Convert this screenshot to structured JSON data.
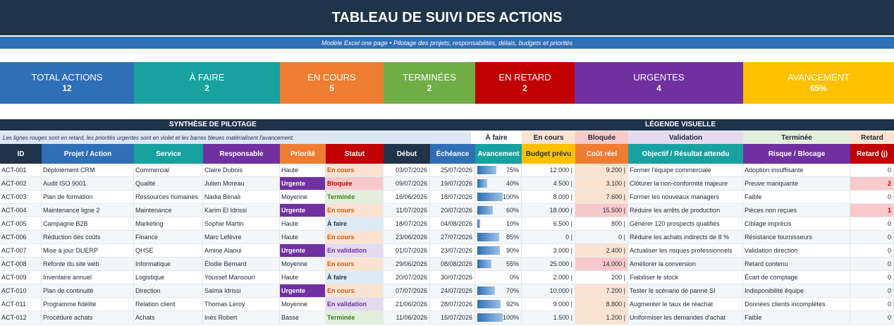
{
  "title": "TABLEAU DE SUIVI DES ACTIONS",
  "subtitle": "Modèle Excel one page • Pilotage des projets, responsabilités, délais, budgets et priorités",
  "kpis": [
    {
      "label": "TOTAL ACTIONS",
      "value": "12",
      "color": "#2f6fb6"
    },
    {
      "label": "À FAIRE",
      "value": "2",
      "color": "#17a2a0"
    },
    {
      "label": "EN COURS",
      "value": "5",
      "color": "#ee7d31"
    },
    {
      "label": "TERMINÉES",
      "value": "2",
      "color": "#70ad47"
    },
    {
      "label": "EN RETARD",
      "value": "2",
      "color": "#c00000"
    },
    {
      "label": "URGENTES",
      "value": "4",
      "color": "#7030a0"
    },
    {
      "label": "AVANCEMENT",
      "value": "65%",
      "color": "#ffc000"
    }
  ],
  "section": {
    "synthese": "SYNTHÈSE DE PILOTAGE",
    "legende": "LÉGENDE VISUELLE"
  },
  "info_note": "Les lignes rouges sont en retard, les priorités urgentes sont en violet et les barres bleues matérialisent l'avancement.",
  "legend": [
    {
      "label": "À faire",
      "bg": "#ffffff"
    },
    {
      "label": "En cours",
      "bg": "#fbe3d2"
    },
    {
      "label": "Bloquée",
      "bg": "#f8c9c9"
    },
    {
      "label": "Validation",
      "bg": "#e5daf0"
    },
    {
      "label": "Terminée",
      "bg": "#e2efda"
    },
    {
      "label": "Retard",
      "bg": "#fbe3d2"
    }
  ],
  "columns": [
    {
      "label": "ID",
      "color": "#1f3349"
    },
    {
      "label": "Projet / Action",
      "color": "#2f6fb6"
    },
    {
      "label": "Service",
      "color": "#17a2a0"
    },
    {
      "label": "Responsable",
      "color": "#7030a0"
    },
    {
      "label": "Priorité",
      "color": "#ee7d31"
    },
    {
      "label": "Statut",
      "color": "#c00000"
    },
    {
      "label": "Début",
      "color": "#1f3349"
    },
    {
      "label": "Échéance",
      "color": "#2f6fb6"
    },
    {
      "label": "Avancement",
      "color": "#17a2a0"
    },
    {
      "label": "Budget prévu",
      "color": "#ffc000"
    },
    {
      "label": "Coût réel",
      "color": "#ee7d31"
    },
    {
      "label": "Objectif / Résultat attendu",
      "color": "#17a2a0"
    },
    {
      "label": "Risque / Blocage",
      "color": "#7030a0"
    },
    {
      "label": "Retard (j)",
      "color": "#c00000"
    }
  ],
  "rows": [
    {
      "id": "ACT-001",
      "projet": "Déploiement CRM",
      "service": "Commercial",
      "responsable": "Claire Dubois",
      "priorite": "Haute",
      "statut": "En cours",
      "debut": "03/07/2026",
      "echeance": "25/07/2026",
      "avancement": "75%",
      "avancement_value": 0.75,
      "budget": "12.000 |",
      "cout": "9.200 |",
      "objectif": "Former l'équipe commerciale",
      "risque": "Adoption insuffisante",
      "retard": "0"
    },
    {
      "id": "ACT-002",
      "projet": "Audit ISO 9001",
      "service": "Qualité",
      "responsable": "Julien Moreau",
      "priorite": "Urgente",
      "statut": "Bloquée",
      "debut": "09/07/2026",
      "echeance": "19/07/2026",
      "avancement": "40%",
      "avancement_value": 0.4,
      "budget": "4.500 |",
      "cout": "3.100 |",
      "objectif": "Clôturer la non-conformité majeure",
      "risque": "Preuve manquante",
      "retard": "2"
    },
    {
      "id": "ACT-003",
      "projet": "Plan de formation",
      "service": "Ressources humaines",
      "responsable": "Nadia Benali",
      "priorite": "Moyenne",
      "statut": "Terminée",
      "debut": "16/06/2026",
      "echeance": "18/07/2026",
      "avancement": "100%",
      "avancement_value": 1.0,
      "budget": "8.000 |",
      "cout": "7.600 |",
      "objectif": "Former les nouveaux managers",
      "risque": "Faible",
      "retard": "0"
    },
    {
      "id": "ACT-004",
      "projet": "Maintenance ligne 2",
      "service": "Maintenance",
      "responsable": "Karim El Idrissi",
      "priorite": "Urgente",
      "statut": "En cours",
      "debut": "11/07/2026",
      "echeance": "20/07/2026",
      "avancement": "60%",
      "avancement_value": 0.6,
      "budget": "18.000 |",
      "cout": "15.500 |",
      "objectif": "Réduire les arrêts de production",
      "risque": "Pièces non reçues",
      "retard": "1"
    },
    {
      "id": "ACT-005",
      "projet": "Campagne B2B",
      "service": "Marketing",
      "responsable": "Sophie Martin",
      "priorite": "Haute",
      "statut": "À faire",
      "debut": "18/07/2026",
      "echeance": "04/08/2026",
      "avancement": "10%",
      "avancement_value": 0.1,
      "budget": "6.500 |",
      "cout": "800 |",
      "objectif": "Générer 120 prospects qualifiés",
      "risque": "Ciblage imprécis",
      "retard": "0"
    },
    {
      "id": "ACT-006",
      "projet": "Réduction des coûts",
      "service": "Finance",
      "responsable": "Marc Lefèvre",
      "priorite": "Haute",
      "statut": "En cours",
      "debut": "23/06/2026",
      "echeance": "27/07/2026",
      "avancement": "85%",
      "avancement_value": 0.85,
      "budget": "0 |",
      "cout": "0 |",
      "objectif": "Réduire les achats indirects de 8 %",
      "risque": "Résistance fournisseurs",
      "retard": "0"
    },
    {
      "id": "ACT-007",
      "projet": "Mise à jour DUERP",
      "service": "QHSE",
      "responsable": "Amine Alaoui",
      "priorite": "Urgente",
      "statut": "En validation",
      "debut": "01/07/2026",
      "echeance": "23/07/2026",
      "avancement": "90%",
      "avancement_value": 0.9,
      "budget": "3.000 |",
      "cout": "2.400 |",
      "objectif": "Actualiser les risques professionnels",
      "risque": "Validation direction",
      "retard": "0"
    },
    {
      "id": "ACT-008",
      "projet": "Refonte du site web",
      "service": "Informatique",
      "responsable": "Élodie Bernard",
      "priorite": "Moyenne",
      "statut": "En cours",
      "debut": "29/06/2026",
      "echeance": "08/08/2026",
      "avancement": "55%",
      "avancement_value": 0.55,
      "budget": "25.000 |",
      "cout": "14.000 |",
      "objectif": "Améliorer la conversion",
      "risque": "Retard contenu",
      "retard": "0"
    },
    {
      "id": "ACT-009",
      "projet": "Inventaire annuel",
      "service": "Logistique",
      "responsable": "Youssef Mansouri",
      "priorite": "Haute",
      "statut": "À faire",
      "debut": "20/07/2026",
      "echeance": "30/07/2026",
      "avancement": "0%",
      "avancement_value": 0.0,
      "budget": "2.000 |",
      "cout": "200 |",
      "objectif": "Fiabiliser le stock",
      "risque": "Écart de comptage",
      "retard": "0"
    },
    {
      "id": "ACT-010",
      "projet": "Plan de continuité",
      "service": "Direction",
      "responsable": "Salma Idrissi",
      "priorite": "Urgente",
      "statut": "En cours",
      "debut": "07/07/2026",
      "echeance": "24/07/2026",
      "avancement": "70%",
      "avancement_value": 0.7,
      "budget": "10.000 |",
      "cout": "7.200 |",
      "objectif": "Tester le scénario de panne SI",
      "risque": "Indisponibilité équipe",
      "retard": "0"
    },
    {
      "id": "ACT-011",
      "projet": "Programme fidélité",
      "service": "Relation client",
      "responsable": "Thomas Leroy",
      "priorite": "Moyenne",
      "statut": "En validation",
      "debut": "21/06/2026",
      "echeance": "28/07/2026",
      "avancement": "92%",
      "avancement_value": 0.92,
      "budget": "9.000 |",
      "cout": "8.800 |",
      "objectif": "Augmenter le taux de réachat",
      "risque": "Données clients incomplètes",
      "retard": "0"
    },
    {
      "id": "ACT-012",
      "projet": "Procédure achats",
      "service": "Achats",
      "responsable": "Inès Robert",
      "priorite": "Basse",
      "statut": "Terminée",
      "debut": "11/06/2026",
      "echeance": "15/07/2026",
      "avancement": "100%",
      "avancement_value": 1.0,
      "budget": "1.500 |",
      "cout": "1.200 |",
      "objectif": "Uniformiser les demandes d'achat",
      "risque": "Faible",
      "retard": "0"
    }
  ]
}
